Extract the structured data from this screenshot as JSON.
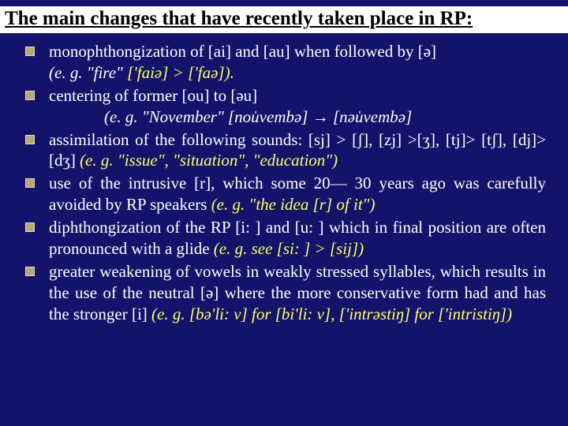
{
  "background_color": "#13136b",
  "title_bg": "#ffffff",
  "title_color": "#000000",
  "text_color": "#ffffff",
  "accent_color": "#ffff66",
  "bullet_color": "#b7a77a",
  "font_family": "Times New Roman",
  "title": "The main changes that have recently taken place in RP:",
  "items": [
    {
      "main": "monophthongization of [ai] and [au] when followed by [ə]",
      "ex_prefix": "(e. g. \"fire\"",
      "ex_yellow": "['faiə] > ['faə]).",
      "sub": ""
    },
    {
      "main": "centering of former [ou] to [əu]",
      "sub": "(e. g. \"November\" [nou̍vembə] → [nəu̍vembə]"
    },
    {
      "main": "assimilation of the following sounds: [sj] > [ʃ], [zj] >[ʒ], [tj]> [tʃ], [dj]> [dʒ]",
      "ex_inline": "    (e. g. \"issue\", \"situation\", \"education\")"
    },
    {
      "main": "use of the intrusive [r], which some 20— 30 years ago was carefully avoided by RP speakers",
      "ex_inline": "    (e. g. \"the idea [r] of it\")"
    },
    {
      "main": "diphthongization of the RP [i: ] and [u: ] which in final position are often pronounced with a glide",
      "ex_inline": "   (e. g. see  [si: ] > [sij])"
    },
    {
      "main": "greater weakening of vowels in weakly stressed syllables, which results in the use of the neutral [ə] where the more conservative form had and has the stronger [i]",
      "ex_inline": " (e. g. [bə'li: v] for [bi'li: v], ['intrəstiŋ] for ['intristiŋ])"
    }
  ]
}
